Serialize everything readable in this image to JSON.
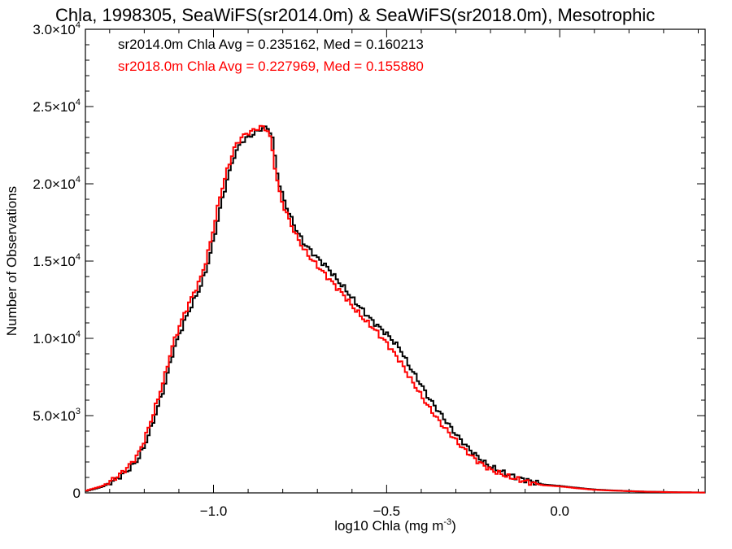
{
  "chart_data": {
    "type": "line",
    "title": "Chla, 1998305, SeaWiFS(sr2014.0m) & SeaWiFS(sr2018.0m), Mesotrophic",
    "xlabel": "log10 Chla (mg m",
    "xlabel_sup": "-3",
    "xlabel_end": ")",
    "ylabel": "Number of Observations",
    "xlim": [
      -1.37,
      0.42
    ],
    "ylim": [
      0,
      30000
    ],
    "x_ticks": [
      -1.0,
      -0.5,
      0.0
    ],
    "x_tick_labels": [
      "−1.0",
      "−0.5",
      "0.0"
    ],
    "y_ticks": [
      0,
      5000,
      10000,
      15000,
      20000,
      25000,
      30000
    ],
    "y_tick_labels": [
      {
        "mant": "0",
        "exp": ""
      },
      {
        "mant": "5.0×10",
        "exp": "3"
      },
      {
        "mant": "1.0×10",
        "exp": "4"
      },
      {
        "mant": "1.5×10",
        "exp": "4"
      },
      {
        "mant": "2.0×10",
        "exp": "4"
      },
      {
        "mant": "2.5×10",
        "exp": "4"
      },
      {
        "mant": "3.0×10",
        "exp": "4"
      }
    ],
    "legend": [
      {
        "text": "sr2014.0m Chla Avg = 0.235162, Med = 0.160213",
        "color": "#000000"
      },
      {
        "text": "sr2018.0m Chla Avg = 0.227969, Med = 0.155880",
        "color": "#ff0000"
      }
    ],
    "series": [
      {
        "color": "#000000",
        "x": [
          -1.37,
          -1.32,
          -1.28,
          -1.25,
          -1.22,
          -1.2,
          -1.18,
          -1.16,
          -1.14,
          -1.12,
          -1.1,
          -1.08,
          -1.06,
          -1.04,
          -1.02,
          -1.0,
          -0.98,
          -0.96,
          -0.94,
          -0.92,
          -0.9,
          -0.88,
          -0.86,
          -0.84,
          -0.83,
          -0.82,
          -0.81,
          -0.8,
          -0.78,
          -0.76,
          -0.74,
          -0.72,
          -0.7,
          -0.68,
          -0.66,
          -0.64,
          -0.62,
          -0.6,
          -0.58,
          -0.56,
          -0.54,
          -0.52,
          -0.5,
          -0.48,
          -0.46,
          -0.44,
          -0.42,
          -0.4,
          -0.38,
          -0.36,
          -0.34,
          -0.32,
          -0.3,
          -0.28,
          -0.26,
          -0.24,
          -0.22,
          -0.2,
          -0.15,
          -0.1,
          -0.05,
          0.0,
          0.05,
          0.1,
          0.15,
          0.2,
          0.25,
          0.3,
          0.35,
          0.42
        ],
        "values": [
          100,
          400,
          900,
          1400,
          2100,
          3000,
          4200,
          5600,
          7000,
          8900,
          10200,
          11300,
          12300,
          13200,
          14500,
          16300,
          18500,
          20300,
          21800,
          22700,
          23000,
          23300,
          23600,
          23600,
          23000,
          21300,
          20000,
          19200,
          18000,
          17000,
          16200,
          15700,
          15200,
          14800,
          14300,
          13700,
          13200,
          12600,
          12100,
          11600,
          11100,
          10700,
          10300,
          9800,
          9300,
          8400,
          7700,
          7000,
          6200,
          5600,
          5000,
          4400,
          3800,
          3300,
          2800,
          2400,
          2000,
          1700,
          1200,
          850,
          550,
          450,
          330,
          220,
          160,
          120,
          80,
          60,
          40,
          25
        ]
      },
      {
        "color": "#ff0000",
        "x": [
          -1.37,
          -1.32,
          -1.28,
          -1.25,
          -1.22,
          -1.2,
          -1.18,
          -1.16,
          -1.14,
          -1.12,
          -1.1,
          -1.08,
          -1.06,
          -1.04,
          -1.02,
          -1.0,
          -0.98,
          -0.96,
          -0.94,
          -0.92,
          -0.9,
          -0.88,
          -0.86,
          -0.84,
          -0.83,
          -0.82,
          -0.81,
          -0.8,
          -0.78,
          -0.76,
          -0.74,
          -0.72,
          -0.7,
          -0.68,
          -0.66,
          -0.64,
          -0.62,
          -0.6,
          -0.58,
          -0.56,
          -0.54,
          -0.52,
          -0.5,
          -0.48,
          -0.46,
          -0.44,
          -0.42,
          -0.4,
          -0.38,
          -0.36,
          -0.34,
          -0.32,
          -0.3,
          -0.28,
          -0.26,
          -0.24,
          -0.22,
          -0.2,
          -0.15,
          -0.1,
          -0.05,
          0.0,
          0.05,
          0.1,
          0.15,
          0.2,
          0.25,
          0.3,
          0.35,
          0.42
        ],
        "values": [
          130,
          450,
          1000,
          1600,
          2400,
          3400,
          4700,
          6100,
          7600,
          9400,
          10700,
          11800,
          12800,
          13700,
          15100,
          17100,
          19300,
          20900,
          22300,
          23000,
          23300,
          23500,
          23700,
          23400,
          22200,
          20700,
          19500,
          18700,
          17600,
          16600,
          15800,
          15200,
          14700,
          14200,
          13700,
          13200,
          12700,
          12100,
          11600,
          11100,
          10700,
          10200,
          9700,
          9100,
          8500,
          7700,
          7000,
          6300,
          5600,
          5000,
          4400,
          3900,
          3400,
          2900,
          2500,
          2100,
          1800,
          1500,
          1050,
          750,
          500,
          420,
          300,
          200,
          150,
          110,
          75,
          55,
          35,
          20
        ]
      }
    ]
  }
}
